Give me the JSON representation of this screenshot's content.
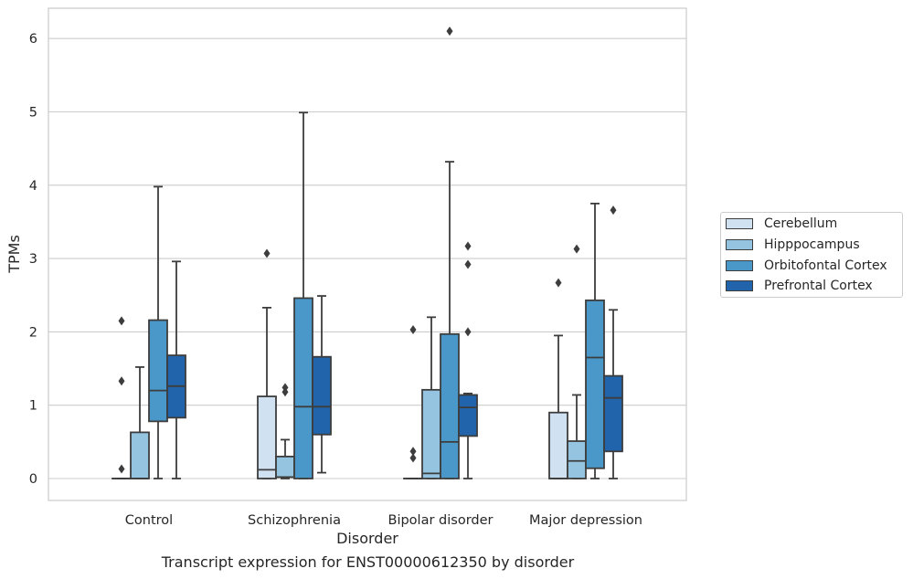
{
  "chart_data": {
    "type": "box",
    "caption": "Transcript expression for ENST00000612350 by disorder",
    "xlabel": "Disorder",
    "ylabel": "TPMs",
    "ylim": [
      -0.3,
      6.4
    ],
    "yticks": [
      0,
      1,
      2,
      3,
      4,
      5,
      6
    ],
    "grid": true,
    "legend_position": "right",
    "categories": [
      "Control",
      "Schizophrenia",
      "Bipolar disorder",
      "Major depression"
    ],
    "series": [
      {
        "name": "Cerebellum",
        "color": "#d0e1f2",
        "boxes": [
          {
            "whislo": 0,
            "q1": 0,
            "med": 0,
            "q3": 0,
            "whishi": 0,
            "fliers": [
              0.13,
              1.33,
              2.15
            ]
          },
          {
            "whislo": 0,
            "q1": 0,
            "med": 0.12,
            "q3": 1.12,
            "whishi": 2.33,
            "fliers": [
              3.07
            ]
          },
          {
            "whislo": 0,
            "q1": 0,
            "med": 0,
            "q3": 0,
            "whishi": 0,
            "fliers": [
              0.28,
              0.37,
              2.03
            ]
          },
          {
            "whislo": 0,
            "q1": 0,
            "med": 0,
            "q3": 0.9,
            "whishi": 1.95,
            "fliers": [
              2.67
            ]
          }
        ]
      },
      {
        "name": "Hipppocampus",
        "color": "#94c4df",
        "boxes": [
          {
            "whislo": 0,
            "q1": 0,
            "med": 0,
            "q3": 0.63,
            "whishi": 1.52,
            "fliers": []
          },
          {
            "whislo": 0,
            "q1": 0.02,
            "med": 0.02,
            "q3": 0.3,
            "whishi": 0.53,
            "fliers": [
              1.18,
              1.24
            ]
          },
          {
            "whislo": 0,
            "q1": 0,
            "med": 0.07,
            "q3": 1.21,
            "whishi": 2.2,
            "fliers": []
          },
          {
            "whislo": 0,
            "q1": 0,
            "med": 0.24,
            "q3": 0.51,
            "whishi": 1.14,
            "fliers": [
              3.13
            ]
          }
        ]
      },
      {
        "name": "Orbitofontal Cortex",
        "color": "#4a98c9",
        "boxes": [
          {
            "whislo": 0,
            "q1": 0.78,
            "med": 1.2,
            "q3": 2.16,
            "whishi": 3.98,
            "fliers": []
          },
          {
            "whislo": 0,
            "q1": 0,
            "med": 0.98,
            "q3": 2.46,
            "whishi": 4.99,
            "fliers": []
          },
          {
            "whislo": 0,
            "q1": 0,
            "med": 0.5,
            "q3": 1.97,
            "whishi": 4.32,
            "fliers": [
              6.1
            ]
          },
          {
            "whislo": 0,
            "q1": 0.14,
            "med": 1.65,
            "q3": 2.43,
            "whishi": 3.75,
            "fliers": []
          }
        ]
      },
      {
        "name": "Prefrontal Cortex",
        "color": "#2164ab",
        "boxes": [
          {
            "whislo": 0,
            "q1": 0.83,
            "med": 1.26,
            "q3": 1.68,
            "whishi": 2.96,
            "fliers": []
          },
          {
            "whislo": 0.08,
            "q1": 0.6,
            "med": 0.98,
            "q3": 1.66,
            "whishi": 2.49,
            "fliers": []
          },
          {
            "whislo": 0,
            "q1": 0.58,
            "med": 0.97,
            "q3": 1.14,
            "whishi": 1.16,
            "fliers": [
              2.0,
              2.92,
              3.17
            ]
          },
          {
            "whislo": 0,
            "q1": 0.37,
            "med": 1.1,
            "q3": 1.4,
            "whishi": 2.3,
            "fliers": [
              3.66
            ]
          }
        ]
      }
    ]
  }
}
